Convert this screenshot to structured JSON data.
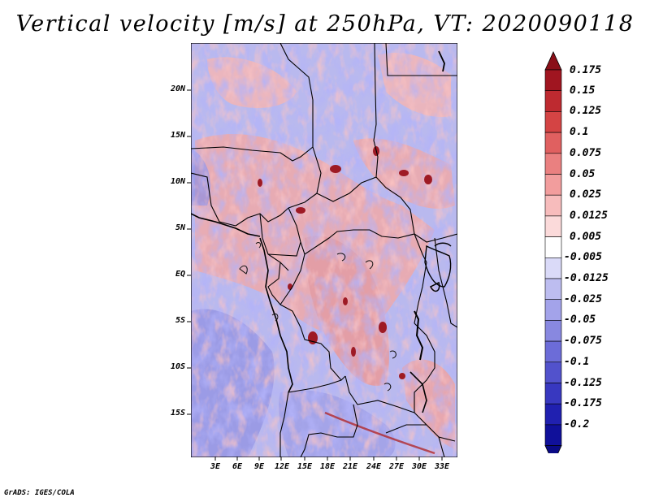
{
  "title": "Vertical velocity [m/s] at 250hPa, VT: 2020090118",
  "map": {
    "lat_labels": [
      "20N",
      "15N",
      "10N",
      "5N",
      "EQ",
      "5S",
      "10S",
      "15S"
    ],
    "lon_labels": [
      "3E",
      "6E",
      "9E",
      "12E",
      "15E",
      "18E",
      "21E",
      "24E",
      "27E",
      "30E",
      "33E"
    ]
  },
  "colorbar": {
    "labels": [
      "0.175",
      "0.15",
      "0.125",
      "0.1",
      "0.075",
      "0.05",
      "0.025",
      "0.0125",
      "0.005",
      "-0.005",
      "-0.0125",
      "-0.025",
      "-0.05",
      "-0.075",
      "-0.1",
      "-0.125",
      "-0.175",
      "-0.2"
    ],
    "colors": [
      "#a01520",
      "#be2a30",
      "#d44444",
      "#e06060",
      "#ea8080",
      "#f29d9d",
      "#f7bcbc",
      "#fbdada",
      "#ffffff",
      "#dadaf8",
      "#bdbdf0",
      "#a3a3ea",
      "#8888e0",
      "#6c6cd8",
      "#5252cc",
      "#3838c0",
      "#2020b0",
      "#10109a"
    ],
    "top_arrow_color": "#8a0f18",
    "bottom_arrow_color": "#0a0a85"
  },
  "footer": "GrADS: IGES/COLA"
}
